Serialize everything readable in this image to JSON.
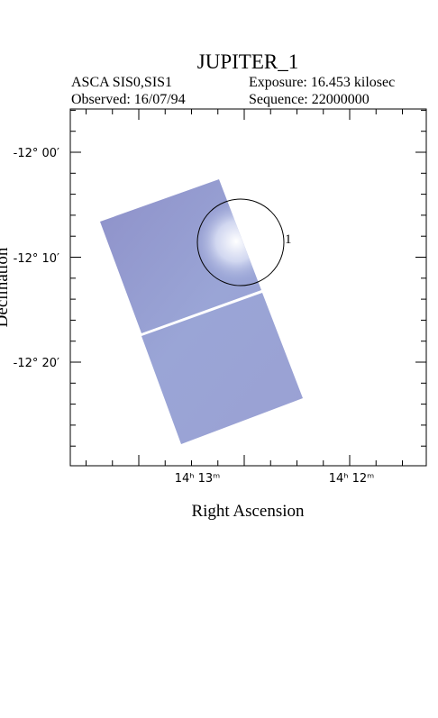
{
  "header": {
    "title": "JUPITER_1",
    "instrument": "ASCA SIS0,SIS1",
    "exposure": "Exposure: 16.453 kilosec",
    "observed": "Observed: 16/07/94",
    "sequence": "Sequence: 22000000"
  },
  "plot": {
    "x_axis_label": "Right Ascension",
    "y_axis_label": "Declination",
    "x_tick_labels": [
      "14ʰ 13ᵐ",
      "14ʰ 12ᵐ"
    ],
    "y_tick_labels": [
      "-12° 00′",
      "-12° 10′",
      "-12° 20′"
    ],
    "source_label": "1"
  }
}
